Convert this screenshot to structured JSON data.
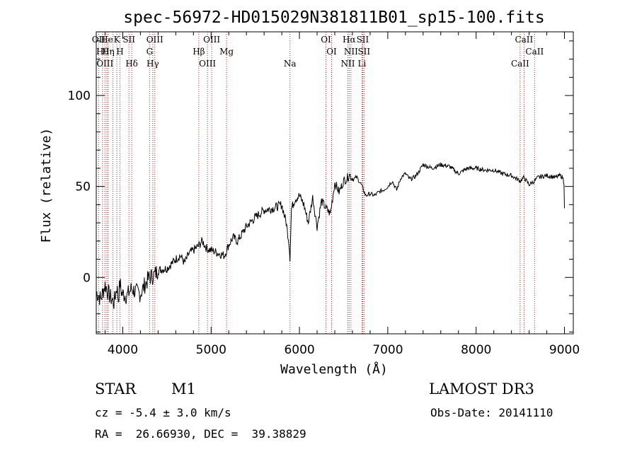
{
  "chart_data": {
    "type": "line",
    "title": "spec-56972-HD015029N381811B01_sp15-100.fits",
    "xlabel": "Wavelength (Å)",
    "ylabel": "Flux (relative)",
    "xlim": [
      3700,
      9100
    ],
    "ylim": [
      -31,
      135
    ],
    "x_ticks": [
      4000,
      5000,
      6000,
      7000,
      8000,
      9000
    ],
    "x_tick_labels": [
      "4000",
      "5000",
      "6000",
      "7000",
      "8000",
      "9000"
    ],
    "y_ticks": [
      0,
      50,
      100
    ],
    "y_tick_labels": [
      "0",
      "50",
      "100"
    ],
    "grid": false,
    "series_color": "#000000",
    "line_color": "#b22222",
    "x": [
      3700,
      3750,
      3800,
      3850,
      3900,
      3933,
      3950,
      3968,
      3990,
      4050,
      4100,
      4150,
      4200,
      4250,
      4300,
      4350,
      4400,
      4500,
      4600,
      4650,
      4700,
      4750,
      4800,
      4850,
      4900,
      4950,
      5000,
      5050,
      5100,
      5150,
      5200,
      5250,
      5300,
      5400,
      5500,
      5600,
      5700,
      5800,
      5850,
      5880,
      5893,
      5910,
      5950,
      6000,
      6050,
      6100,
      6150,
      6200,
      6250,
      6300,
      6350,
      6400,
      6450,
      6500,
      6550,
      6563,
      6600,
      6650,
      6700,
      6750,
      6800,
      6850,
      6900,
      6950,
      7000,
      7050,
      7100,
      7150,
      7200,
      7250,
      7300,
      7350,
      7400,
      7500,
      7600,
      7700,
      7800,
      7900,
      8000,
      8100,
      8200,
      8250,
      8300,
      8400,
      8500,
      8540,
      8600,
      8662,
      8700,
      8800,
      8900,
      8950,
      8980,
      8995,
      9000
    ],
    "y": [
      -8,
      -12,
      -4,
      -10,
      -14,
      -5,
      -12,
      -3,
      -9,
      -10,
      -6,
      -8,
      -9,
      -4,
      0,
      1,
      4,
      5,
      10,
      12,
      8,
      13,
      15,
      17,
      20,
      16,
      15,
      14,
      13,
      12,
      18,
      22,
      20,
      28,
      33,
      37,
      38,
      40,
      30,
      20,
      11,
      38,
      43,
      45,
      40,
      30,
      44,
      28,
      42,
      38,
      35,
      52,
      47,
      53,
      55,
      57,
      54,
      55,
      51,
      45,
      46,
      45,
      47,
      48,
      50,
      53,
      48,
      55,
      57,
      54,
      55,
      58,
      62,
      60,
      62,
      61,
      57,
      60,
      60,
      59,
      59,
      58,
      57,
      56,
      53,
      55,
      51,
      53,
      55,
      56,
      55,
      56,
      55,
      52,
      38
    ],
    "lines": [
      {
        "wavelength": 3727,
        "labels": [
          "OII"
        ]
      },
      {
        "wavelength": 3771,
        "labels": [
          "Hθ"
        ]
      },
      {
        "wavelength": 3798,
        "labels": [
          "OIII"
        ]
      },
      {
        "wavelength": 3820,
        "labels": [
          "He"
        ]
      },
      {
        "wavelength": 3835,
        "labels": [
          "Hη"
        ]
      },
      {
        "wavelength": 3889,
        "labels": [
          ""
        ]
      },
      {
        "wavelength": 3933,
        "labels": [
          "K"
        ]
      },
      {
        "wavelength": 3968,
        "labels": [
          "H"
        ]
      },
      {
        "wavelength": 4101,
        "labels": [
          "Hδ"
        ]
      },
      {
        "wavelength": 4070,
        "labels": [
          "SII"
        ]
      },
      {
        "wavelength": 4304,
        "labels": [
          "G"
        ]
      },
      {
        "wavelength": 4340,
        "labels": [
          "Hγ"
        ]
      },
      {
        "wavelength": 4363,
        "labels": [
          "OIII"
        ]
      },
      {
        "wavelength": 4861,
        "labels": [
          "Hβ"
        ]
      },
      {
        "wavelength": 4959,
        "labels": [
          "OIII"
        ]
      },
      {
        "wavelength": 5007,
        "labels": [
          "OIII"
        ]
      },
      {
        "wavelength": 5175,
        "labels": [
          "Mg"
        ]
      },
      {
        "wavelength": 5893,
        "labels": [
          "Na"
        ]
      },
      {
        "wavelength": 6300,
        "labels": [
          "OI"
        ]
      },
      {
        "wavelength": 6364,
        "labels": [
          "OI"
        ]
      },
      {
        "wavelength": 6548,
        "labels": [
          "NII"
        ]
      },
      {
        "wavelength": 6563,
        "labels": [
          "Hα"
        ]
      },
      {
        "wavelength": 6583,
        "labels": [
          "NII"
        ]
      },
      {
        "wavelength": 6708,
        "labels": [
          "Li"
        ]
      },
      {
        "wavelength": 6716,
        "labels": [
          "SII"
        ]
      },
      {
        "wavelength": 6731,
        "labels": [
          "SII"
        ]
      },
      {
        "wavelength": 8498,
        "labels": [
          "CaII"
        ]
      },
      {
        "wavelength": 8542,
        "labels": [
          "CaII"
        ]
      },
      {
        "wavelength": 8662,
        "labels": [
          "CaII"
        ]
      }
    ]
  },
  "info": {
    "object_class": "STAR",
    "subclass": "M1",
    "survey": "LAMOST DR3",
    "redshift": "cz = -5.4 ± 3.0 km/s",
    "obs_date": "Obs-Date: 20141110",
    "coords": "RA =  26.66930, DEC =  39.38829"
  }
}
